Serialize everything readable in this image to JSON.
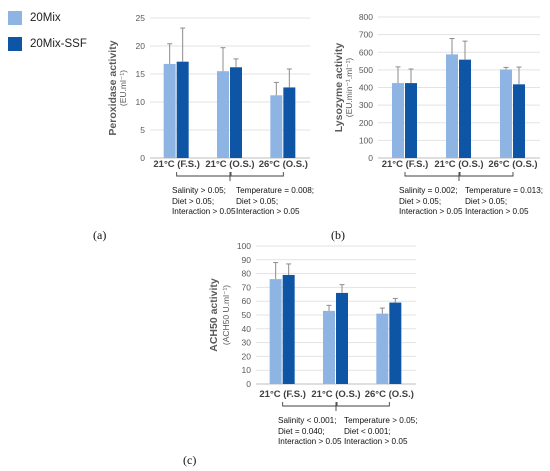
{
  "legend": [
    {
      "label": "20Mix",
      "color": "#8eb4e3"
    },
    {
      "label": "20Mix-SSF",
      "color": "#0e56a5"
    }
  ],
  "panel_labels": [
    "(a)",
    "(b)",
    "(c)"
  ],
  "stats": {
    "a": [
      "Salinity > 0.05;\nDiet > 0.05;\nInteraction > 0.05",
      "Temperature = 0.008;\nDiet > 0.05;\nInteraction > 0.05"
    ],
    "b": [
      "Salinity = 0.002;\nDiet > 0.05;\nInteraction > 0.05",
      "Temperature = 0.013;\nDiet > 0.05;\nInteraction > 0.05"
    ],
    "c": [
      "Salinity < 0.001;\nDiet = 0.040;\nInteraction > 0.05",
      "Temperature > 0.05;\nDiet < 0.001;\nInteraction > 0.05"
    ]
  },
  "chart_data": [
    {
      "type": "bar",
      "title": "",
      "ylabel": "Peroxidase activity",
      "ylabel_unit": "(EU.ml⁻¹)",
      "ylim": [
        0,
        25
      ],
      "yticks": [
        0,
        5,
        10,
        15,
        20,
        25
      ],
      "categories": [
        "21°C (F.S.)",
        "21°C (O.S.)",
        "26°C (O.S.)"
      ],
      "series": [
        {
          "name": "20Mix",
          "values": [
            16.8,
            15.5,
            11.2
          ],
          "errors": [
            3.6,
            4.2,
            2.3
          ]
        },
        {
          "name": "20Mix-SSF",
          "values": [
            17.2,
            16.2,
            12.6
          ],
          "errors": [
            6.0,
            1.5,
            3.3
          ]
        }
      ]
    },
    {
      "type": "bar",
      "title": "",
      "ylabel": "Lysozyme activity",
      "ylabel_unit": "(EU.min⁻¹.ml⁻¹)",
      "ylim": [
        0,
        800
      ],
      "yticks": [
        0,
        100,
        200,
        300,
        400,
        500,
        600,
        700,
        800
      ],
      "categories": [
        "21°C (F.S.)",
        "21°C (O.S.)",
        "26°C (O.S.)"
      ],
      "series": [
        {
          "name": "20Mix",
          "values": [
            425,
            588,
            502
          ],
          "errors": [
            92,
            90,
            12
          ]
        },
        {
          "name": "20Mix-SSF",
          "values": [
            425,
            558,
            418
          ],
          "errors": [
            80,
            105,
            98
          ]
        }
      ]
    },
    {
      "type": "bar",
      "title": "",
      "ylabel": "ACH50 activity",
      "ylabel_unit": "(ACH50 U.ml⁻¹)",
      "ylim": [
        0,
        100
      ],
      "yticks": [
        0,
        10,
        20,
        30,
        40,
        50,
        60,
        70,
        80,
        90,
        100
      ],
      "categories": [
        "21°C (F.S.)",
        "21°C (O.S.)",
        "26°C (O.S.)"
      ],
      "series": [
        {
          "name": "20Mix",
          "values": [
            76,
            53,
            51
          ],
          "errors": [
            12,
            4,
            4
          ]
        },
        {
          "name": "20Mix-SSF",
          "values": [
            79,
            66,
            59
          ],
          "errors": [
            8,
            6,
            3
          ]
        }
      ]
    }
  ]
}
